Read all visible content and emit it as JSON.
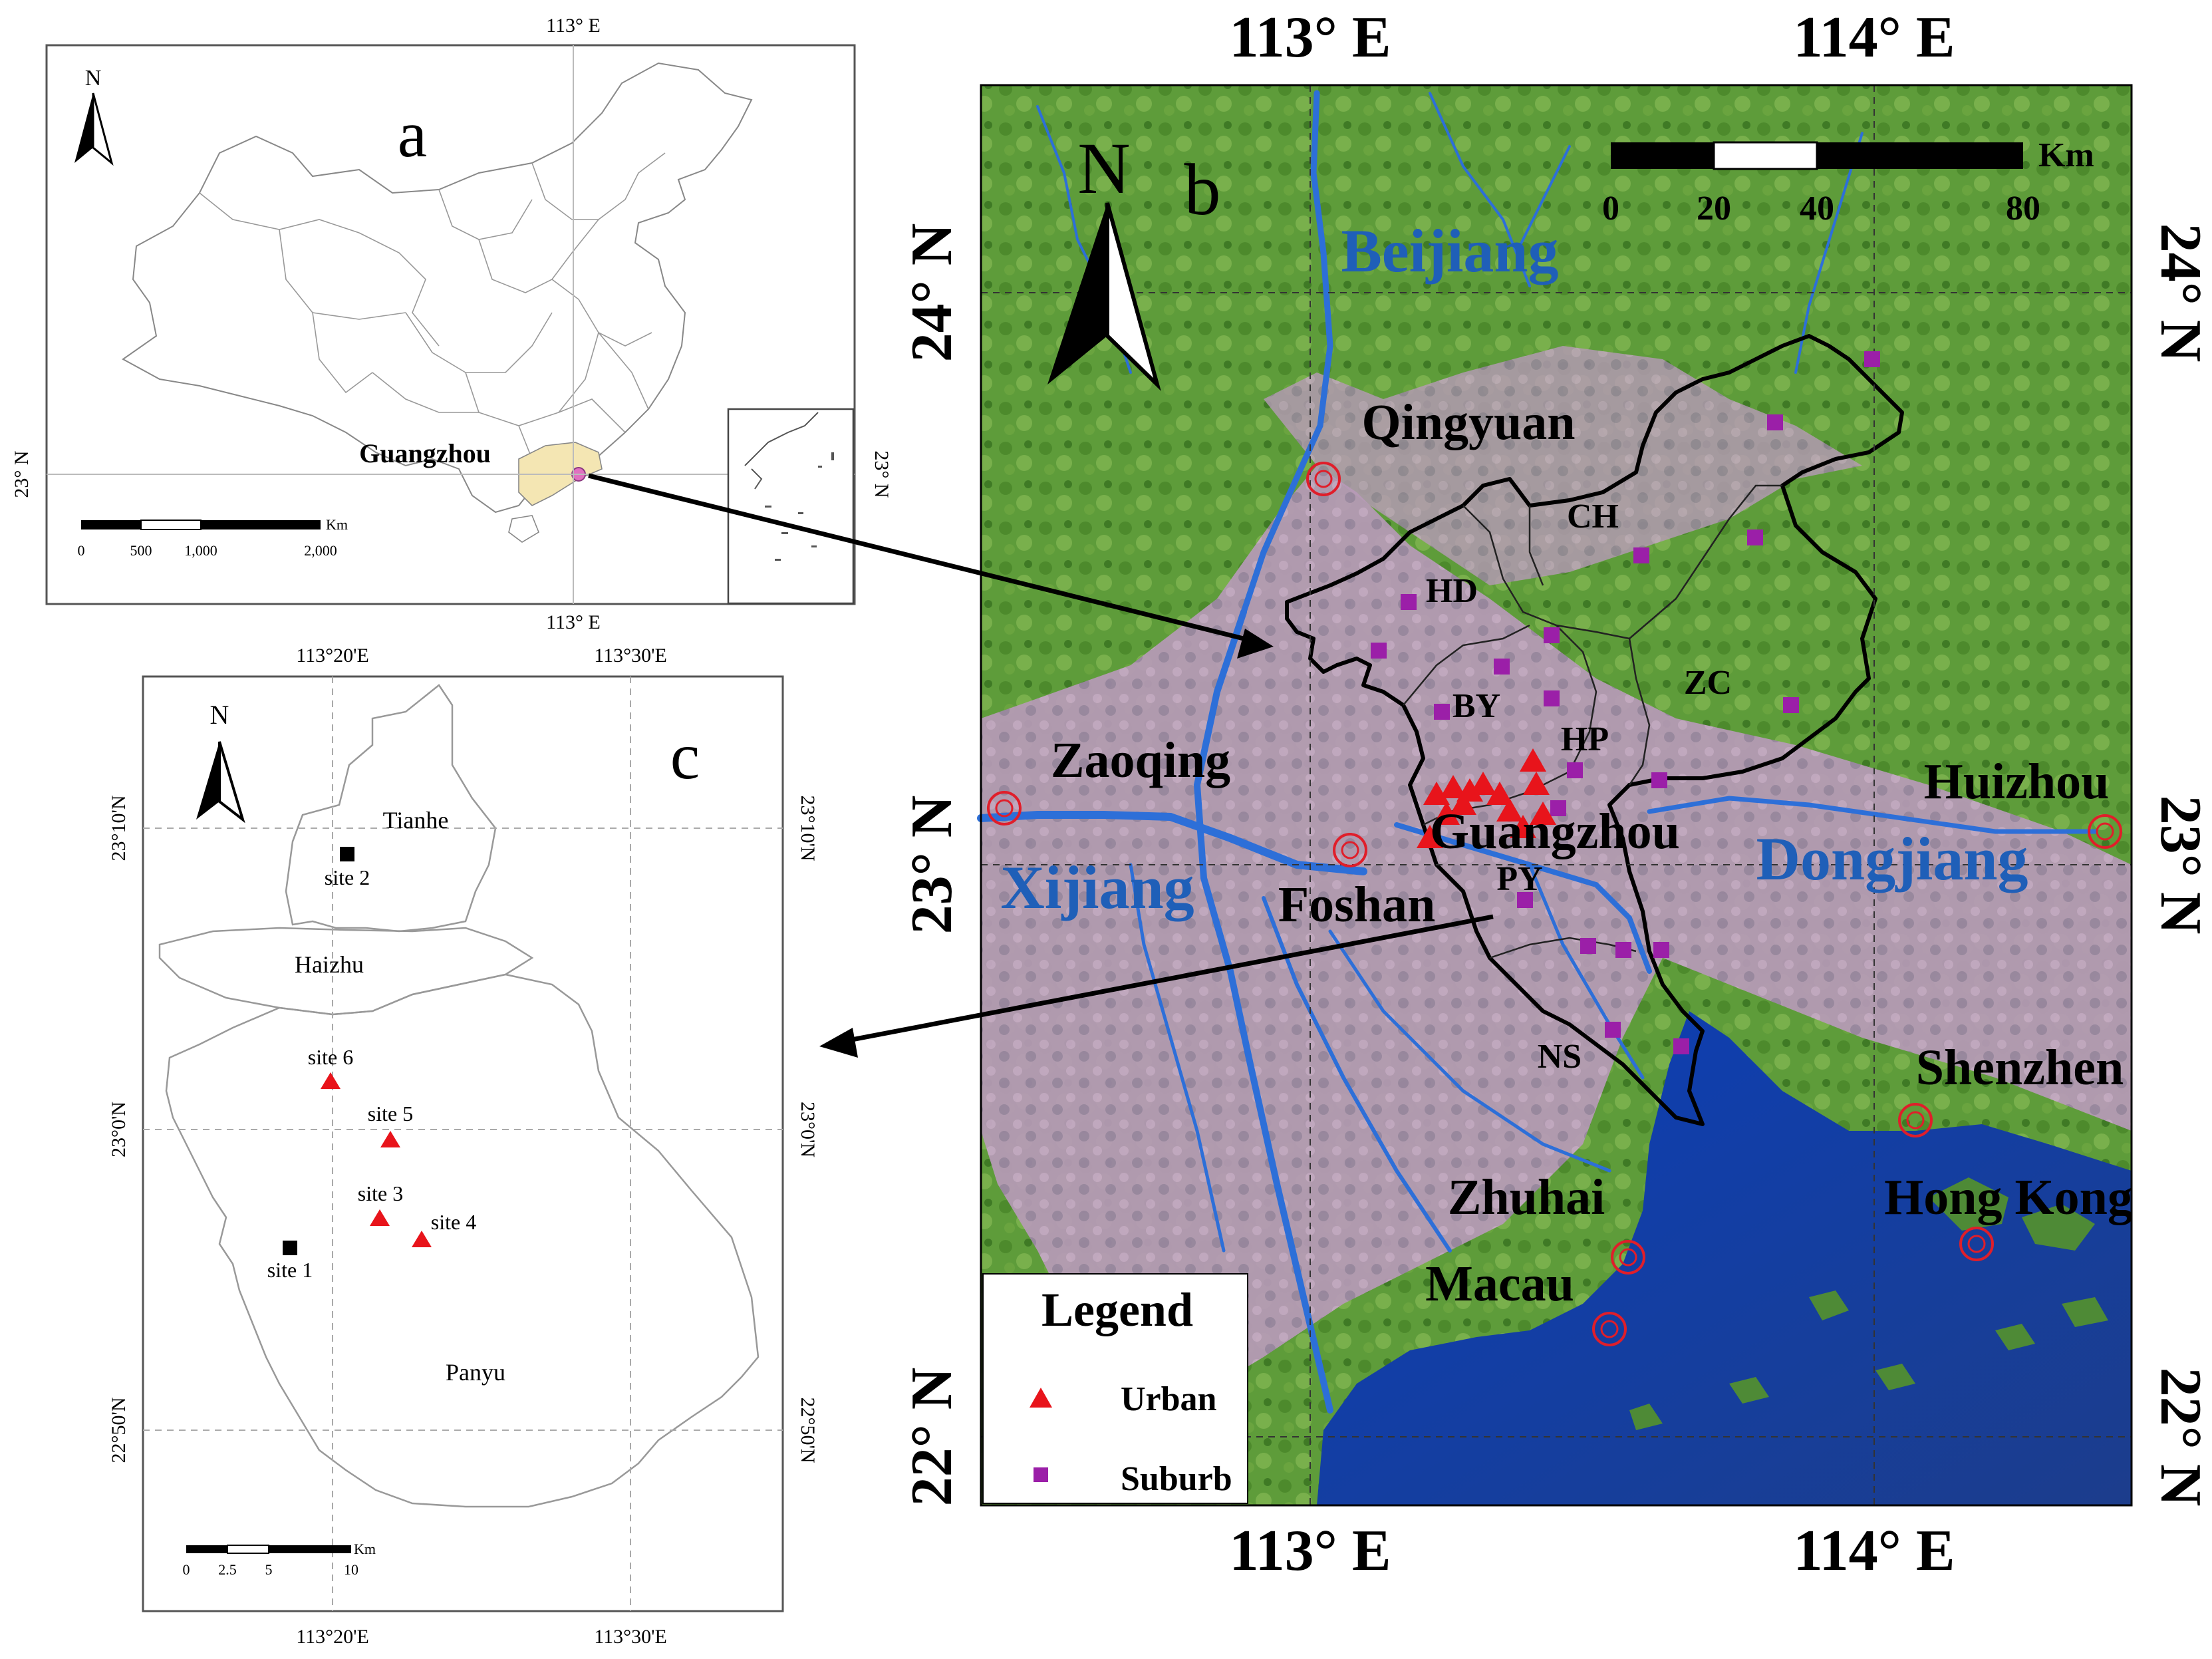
{
  "panel_a": {
    "letter": "a",
    "top_lon": "113° E",
    "bottom_lon": "113° E",
    "left_lat": "23° N",
    "right_lat": "23° N",
    "north": "N",
    "city": "Guangzhou",
    "scale_unit": "Km",
    "scale_ticks": [
      "0",
      "500",
      "1,000",
      "2,000"
    ]
  },
  "panel_b": {
    "letter": "b",
    "north": "N",
    "lon_labels": [
      "113° E",
      "114° E"
    ],
    "lat_labels": [
      "24° N",
      "23° N",
      "22° N"
    ],
    "scale_unit": "Km",
    "scale_ticks": [
      "0",
      "20",
      "40",
      "80"
    ],
    "rivers": [
      "Beijiang",
      "Xijiang",
      "Dongjiang"
    ],
    "cities": [
      "Qingyuan",
      "Zaoqing",
      "Foshan",
      "Guangzhou",
      "Huizhou",
      "Shenzhen",
      "Zhuhai",
      "Hong Kong",
      "Macau"
    ],
    "districts": [
      "CH",
      "HD",
      "BY",
      "HP",
      "ZC",
      "PY",
      "NS"
    ],
    "legend": {
      "title": "Legend",
      "items": [
        {
          "label": "Urban",
          "symbol": "triangle",
          "color": "#e8141b"
        },
        {
          "label": "Suburb",
          "symbol": "square",
          "color": "#9b1fa8"
        }
      ]
    }
  },
  "panel_c": {
    "letter": "c",
    "north": "N",
    "top_lon": [
      "113°20'E",
      "113°30'E"
    ],
    "bottom_lon": [
      "113°20'E",
      "113°30'E"
    ],
    "lat_labels": [
      "23°10'N",
      "23°0'N",
      "22°50'N"
    ],
    "districts": [
      "Tianhe",
      "Haizhu",
      "Panyu"
    ],
    "sites": [
      {
        "label": "site 1",
        "type": "square",
        "color": "#000000"
      },
      {
        "label": "site 2",
        "type": "square",
        "color": "#000000"
      },
      {
        "label": "site 3",
        "type": "triangle",
        "color": "#e8141b"
      },
      {
        "label": "site 4",
        "type": "triangle",
        "color": "#e8141b"
      },
      {
        "label": "site 5",
        "type": "triangle",
        "color": "#e8141b"
      },
      {
        "label": "site 6",
        "type": "triangle",
        "color": "#e8141b"
      }
    ],
    "scale_unit": "Km",
    "scale_ticks": [
      "0",
      "2.5",
      "5",
      "10"
    ]
  }
}
